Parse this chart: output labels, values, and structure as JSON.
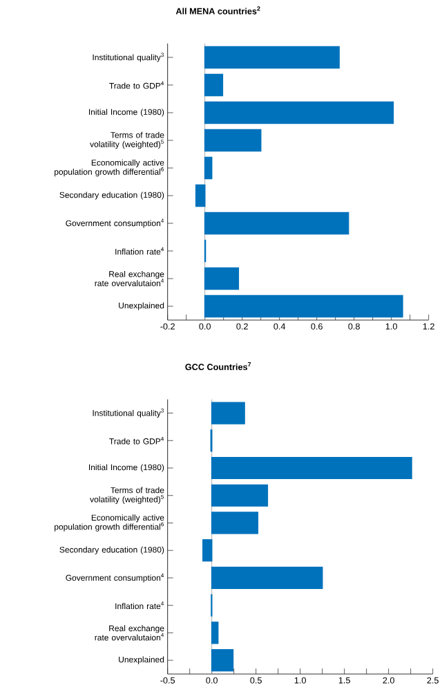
{
  "chart_data": [
    {
      "type": "bar",
      "orientation": "horizontal",
      "title": "**All MENA countries$^{2}$**",
      "categories": [
        "Institutional quality$^{3}$",
        "Trade to GDP$^{4}$",
        "Initial Income (1980)",
        "Terms of trade volatility (weighted)$^{5}$",
        "Economically active population growth differential$^{6}$",
        "Secondary education (1980)",
        "Government consumption$^{4}$",
        "Inflation rate$^{4}$",
        "Real exchange rate overvalutaion$^{4}$",
        "Unexplained"
      ],
      "values": [
        0.72,
        0.095,
        1.01,
        0.3,
        0.037,
        -0.048,
        0.77,
        0.003,
        0.18,
        1.06
      ],
      "color": "#0072bc",
      "xlim": [
        -0.2,
        1.2
      ],
      "xticks": [
        {
          "value": -0.2,
          "label": "-0.2"
        },
        {
          "value": -0.1,
          "label": null
        },
        {
          "value": 0,
          "label": "0.0"
        },
        {
          "value": 0.1,
          "label": null
        },
        {
          "value": 0.2,
          "label": "0.2"
        },
        {
          "value": 0.3,
          "label": null
        },
        {
          "value": 0.4,
          "label": "0.4"
        },
        {
          "value": 0.5,
          "label": null
        },
        {
          "value": 0.6,
          "label": "0.6"
        },
        {
          "value": 0.7,
          "label": null
        },
        {
          "value": 0.8,
          "label": "0.8"
        },
        {
          "value": 0.9,
          "label": null
        },
        {
          "value": 1.0,
          "label": "1.0"
        },
        {
          "value": 1.1,
          "label": null
        },
        {
          "value": 1.2,
          "label": "1.2"
        }
      ],
      "ref_lines": [
        {
          "axis": "x",
          "value": 0,
          "color": "#999999"
        }
      ]
    },
    {
      "type": "bar",
      "orientation": "horizontal",
      "title": "**GCC Countries$^{7}$**",
      "categories": [
        "Institutional quality$^{3}$",
        "Trade to GDP$^{4}$",
        "Initial Income (1980)",
        "Terms of trade volatility (weighted)$^{5}$",
        "Economically active population growth differential$^{6}$",
        "Secondary education (1980)",
        "Government consumption$^{4}$",
        "Inflation rate$^{4}$",
        "Real exchange rate overvalutaion$^{4}$",
        "Unexplained"
      ],
      "values": [
        0.37,
        -0.01,
        2.26,
        0.63,
        0.52,
        -0.1,
        1.25,
        -0.005,
        0.07,
        0.24
      ],
      "color": "#0072bc",
      "xlim": [
        -0.5,
        2.5
      ],
      "xticks": [
        {
          "value": -0.5,
          "label": "-0.5"
        },
        {
          "value": -0.25,
          "label": null
        },
        {
          "value": 0,
          "label": "0.0"
        },
        {
          "value": 0.25,
          "label": null
        },
        {
          "value": 0.5,
          "label": "0.5"
        },
        {
          "value": 0.75,
          "label": null
        },
        {
          "value": 1.0,
          "label": "1.0"
        },
        {
          "value": 1.25,
          "label": null
        },
        {
          "value": 1.5,
          "label": "1.5"
        },
        {
          "value": 1.75,
          "label": null
        },
        {
          "value": 2.0,
          "label": "2.0"
        },
        {
          "value": 2.25,
          "label": null
        },
        {
          "value": 2.5,
          "label": "2.5"
        }
      ],
      "ref_lines": [
        {
          "axis": "x",
          "value": 0,
          "color": "#999999"
        }
      ]
    }
  ]
}
